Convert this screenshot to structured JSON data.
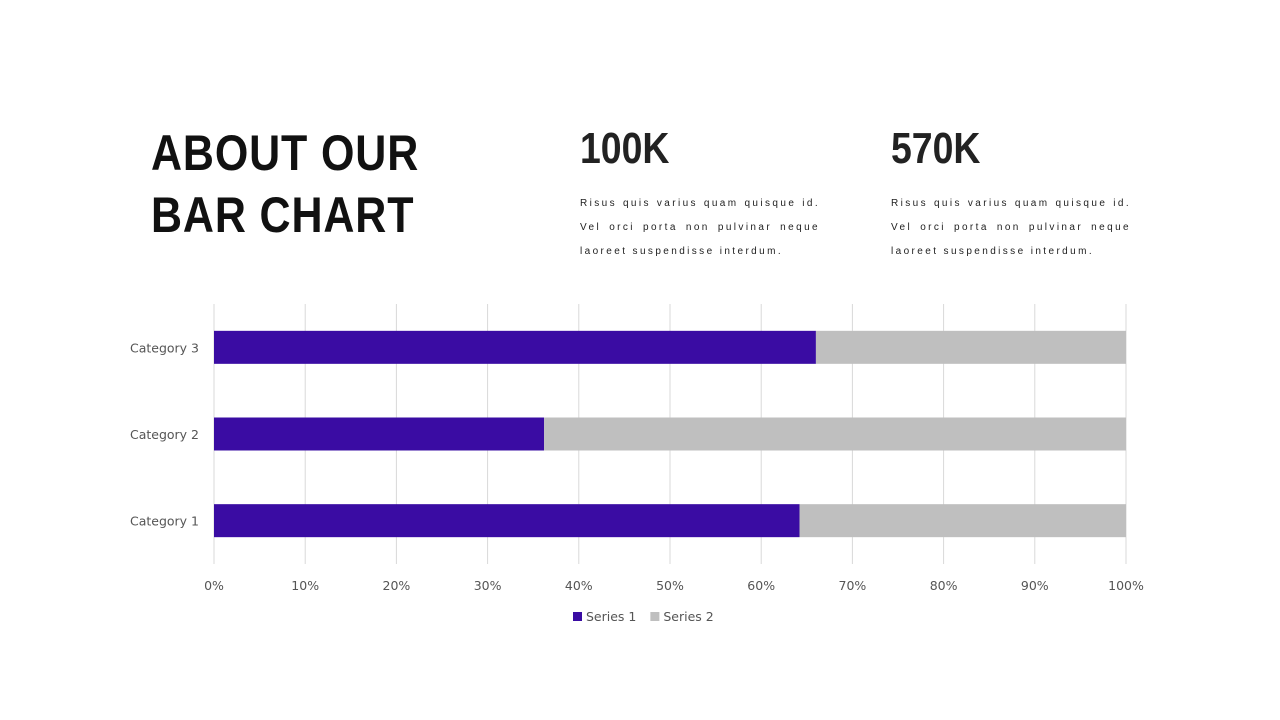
{
  "title": {
    "line1": "ABOUT OUR",
    "line2": "BAR CHART"
  },
  "stats": [
    {
      "value": "100K",
      "text": "Risus quis varius quam quisque id. Vel orci porta non pulvinar neque laoreet suspendisse interdum."
    },
    {
      "value": "570K",
      "text": "Risus quis varius quam quisque id. Vel orci porta non pulvinar neque laoreet suspendisse interdum."
    }
  ],
  "chart_data": {
    "type": "bar",
    "orientation": "horizontal",
    "stacking": "percent",
    "categories": [
      "Category 1",
      "Category 2",
      "Category 3"
    ],
    "series": [
      {
        "name": "Series 1",
        "color": "#3a0ca3",
        "values": [
          64.2,
          36.2,
          66.0
        ]
      },
      {
        "name": "Series 2",
        "color": "#bfbfbf",
        "values": [
          35.8,
          63.8,
          34.0
        ]
      }
    ],
    "xlim": [
      0,
      100
    ],
    "xticks": [
      "0%",
      "10%",
      "20%",
      "30%",
      "40%",
      "50%",
      "60%",
      "70%",
      "80%",
      "90%",
      "100%"
    ],
    "grid": true,
    "legend": "bottom"
  }
}
